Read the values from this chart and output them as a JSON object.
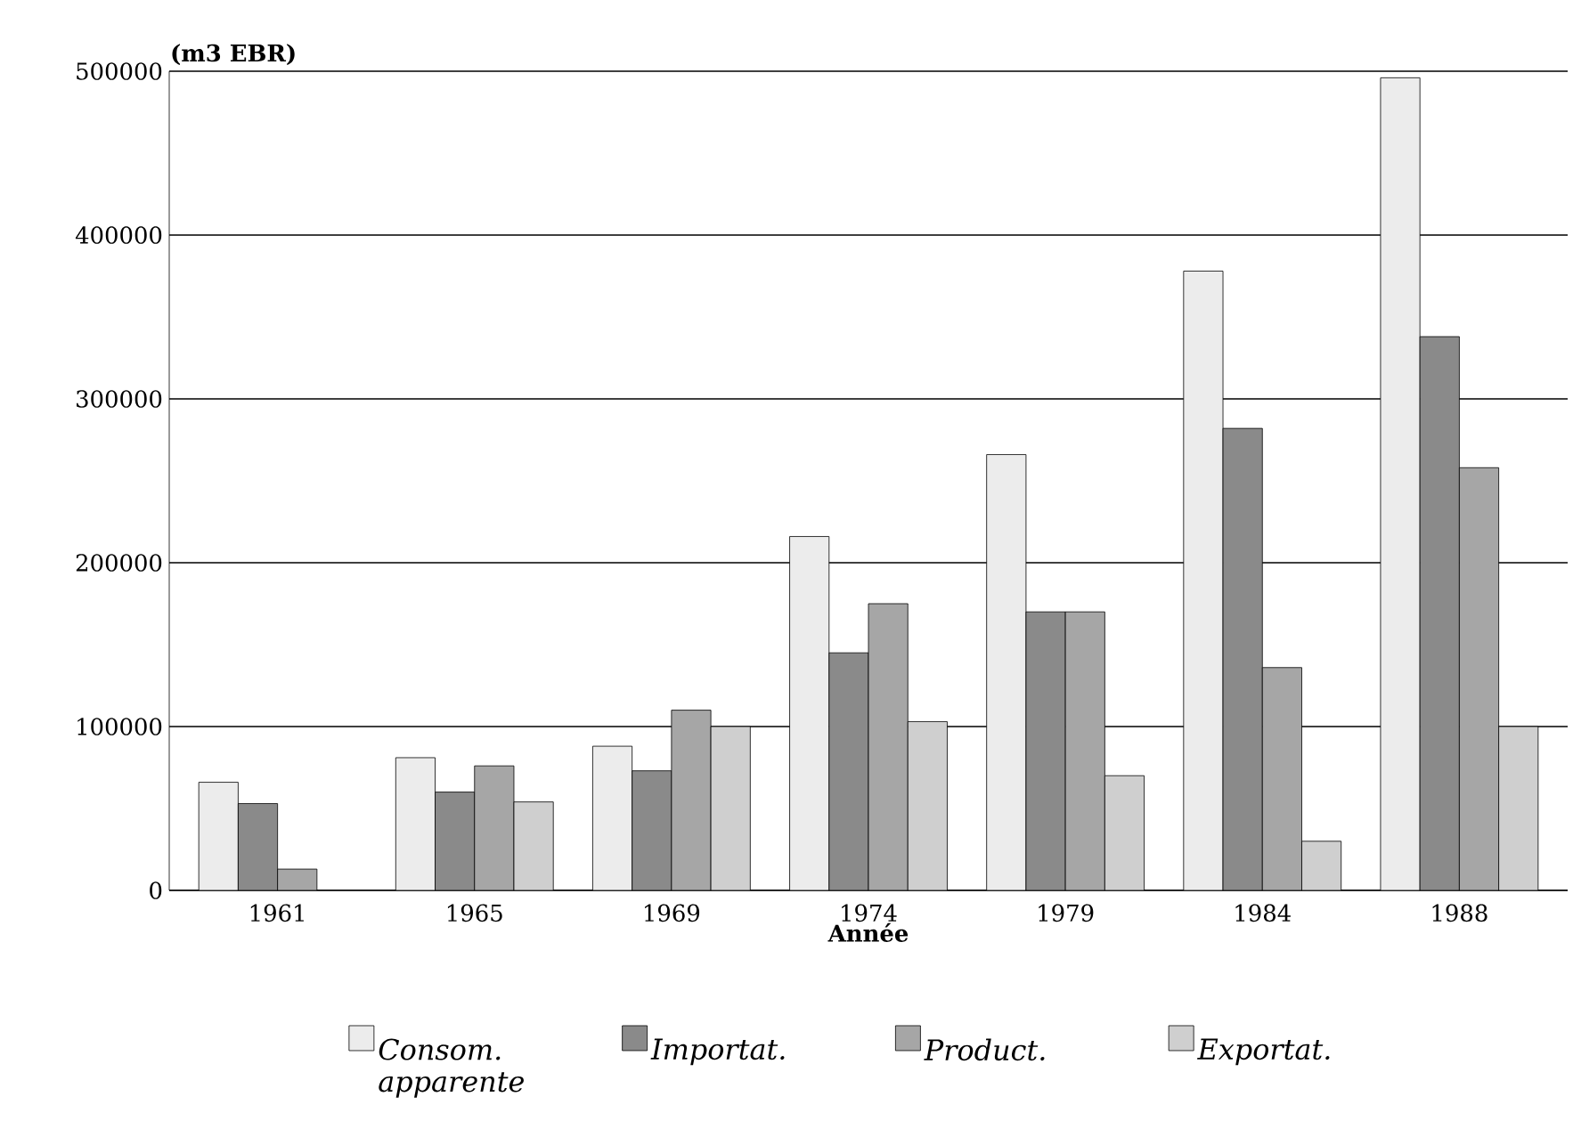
{
  "chart_data": {
    "type": "bar",
    "ylabel": "(m3 EBR)",
    "xlabel": "Année",
    "categories": [
      "1961",
      "1965",
      "1969",
      "1974",
      "1979",
      "1984",
      "1988"
    ],
    "series": [
      {
        "name": "Consom. apparente",
        "color": "#ececec",
        "values": [
          66000,
          81000,
          88000,
          216000,
          266000,
          378000,
          496000
        ]
      },
      {
        "name": "Importat.",
        "color": "#8a8a8a",
        "values": [
          53000,
          60000,
          73000,
          145000,
          170000,
          282000,
          338000
        ]
      },
      {
        "name": "Product.",
        "color": "#a6a6a6",
        "values": [
          13000,
          76000,
          110000,
          175000,
          170000,
          136000,
          258000
        ]
      },
      {
        "name": "Exportat.",
        "color": "#cfcfcf",
        "values": [
          null,
          54000,
          100000,
          103000,
          70000,
          30000,
          100000
        ]
      }
    ],
    "ylim": [
      0,
      500000
    ],
    "yticks": [
      0,
      100000,
      200000,
      300000,
      400000,
      500000
    ],
    "grid": "y",
    "legend": "bottom"
  }
}
